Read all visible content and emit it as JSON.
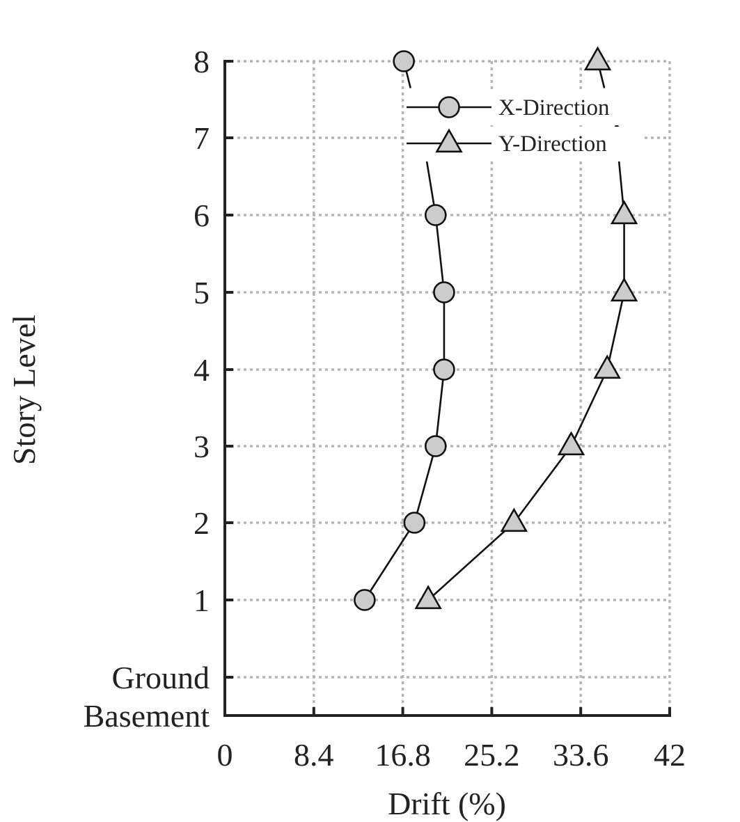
{
  "chart_data": {
    "type": "line",
    "orientation": "vertical-profile",
    "xlabel": "Drift (%)",
    "ylabel": "Story Level",
    "xlim": [
      0,
      42
    ],
    "x_ticks": [
      "0",
      "8.4",
      "16.8",
      "25.2",
      "33.6",
      "42"
    ],
    "x_tick_values": [
      0,
      8.4,
      16.8,
      25.2,
      33.6,
      42
    ],
    "y_ticks": [
      "Basement",
      "Ground",
      "1",
      "2",
      "3",
      "4",
      "5",
      "6",
      "7",
      "8"
    ],
    "categories": [
      "1",
      "2",
      "3",
      "4",
      "5",
      "6",
      "7",
      "8"
    ],
    "grid": true,
    "legend_position": "top-right",
    "series": [
      {
        "name": "X-Direction",
        "marker": "circle",
        "color": "#cccccc",
        "values": [
          13.2,
          17.9,
          19.9,
          20.7,
          20.7,
          19.9,
          18.7,
          16.9
        ]
      },
      {
        "name": "Y-Direction",
        "marker": "triangle",
        "color": "#cccccc",
        "values": [
          19.2,
          27.3,
          32.7,
          36.1,
          37.7,
          37.7,
          37.0,
          35.2
        ]
      }
    ]
  }
}
